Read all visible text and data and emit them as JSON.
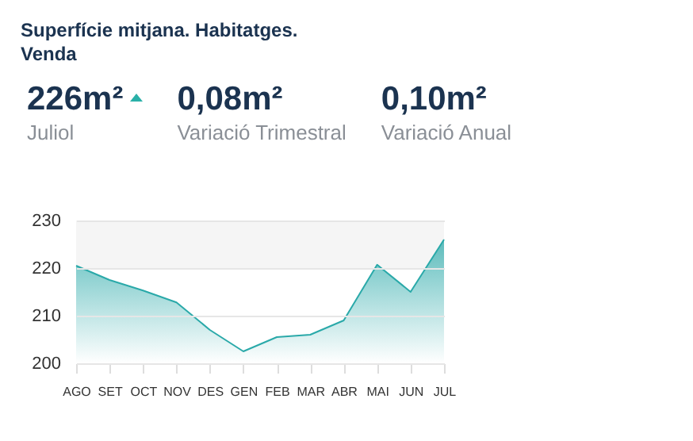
{
  "chart_data": {
    "type": "area",
    "title": "Superfície mitjana. Habitatges. Venda",
    "annotations": [
      "226m²",
      "Juliol",
      "0,08m²",
      "Variació Trimestral",
      "0,10m²",
      "Variació Anual"
    ],
    "categories": [
      "AGO",
      "SET",
      "OCT",
      "NOV",
      "DES",
      "GEN",
      "FEB",
      "MAR",
      "ABR",
      "MAI",
      "JUN",
      "JUL"
    ],
    "series": [
      {
        "color": "#2aa9a9",
        "values": [
          220.5,
          217.5,
          215.3,
          212.8,
          207,
          202.5,
          205.5,
          206,
          209,
          220.7,
          215,
          226
        ]
      }
    ],
    "ylim": [
      200,
      230
    ],
    "yticks": [
      200,
      210,
      220,
      230
    ],
    "grid": "y",
    "bands": [
      {
        "axis": "y",
        "from": 220,
        "to": 230,
        "color": "#f5f5f5"
      }
    ]
  }
}
